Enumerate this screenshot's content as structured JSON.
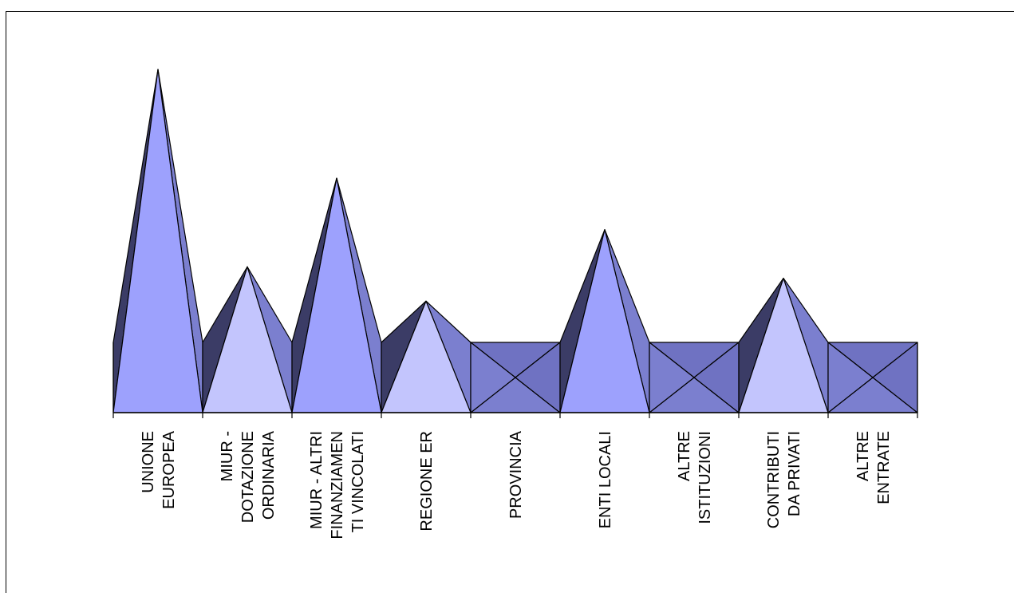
{
  "chart_data": {
    "type": "area",
    "style": "3d-pyramid",
    "categories": [
      [
        "UNIONE",
        "EUROPEA"
      ],
      [
        "MIUR -",
        "DOTAZIONE",
        "ORDINARIA"
      ],
      [
        "MIUR - ALTRI",
        "FINANZIAMEN",
        "TI VINCOLATI"
      ],
      [
        "REGIONE ER"
      ],
      [
        "PROVINCIA"
      ],
      [
        "ENTI LOCALI"
      ],
      [
        "ALTRE",
        "ISTITUZIONI"
      ],
      [
        "CONTRIBUTI",
        "DA PRIVATI"
      ],
      [
        "ALTRE",
        "ENTRATE"
      ]
    ],
    "values": [
      100,
      31,
      62,
      19,
      0,
      44,
      0,
      27,
      0
    ],
    "ylim": [
      -20,
      100
    ],
    "title": "",
    "xlabel": "",
    "ylabel": "",
    "grid": false,
    "legend": false,
    "colors": {
      "light": "#9da1fd",
      "pale": "#c3c5fd",
      "medium": "#7b7fcf",
      "dark": "#3b3c66",
      "flat": "#6f72c2",
      "outline": "#000000"
    }
  }
}
